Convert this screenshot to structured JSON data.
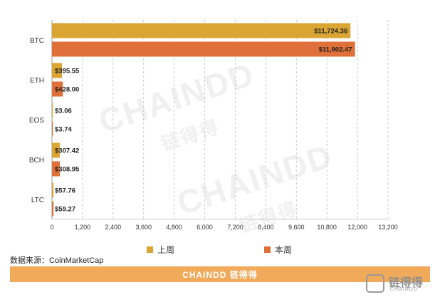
{
  "chart_data": {
    "type": "bar",
    "orientation": "horizontal",
    "categories": [
      "BTC",
      "ETH",
      "EOS",
      "BCH",
      "LTC"
    ],
    "series": [
      {
        "name": "上周",
        "color": "#dba534",
        "values": [
          11724.36,
          395.55,
          3.06,
          307.42,
          57.76
        ],
        "labels": [
          "$11,724.36",
          "$395.55",
          "$3.06",
          "$307.42",
          "$57.76"
        ]
      },
      {
        "name": "本周",
        "color": "#e0703a",
        "values": [
          11902.47,
          428.0,
          3.74,
          308.95,
          59.27
        ],
        "labels": [
          "$11,902.47",
          "$428.00",
          "$3.74",
          "$308.95",
          "$59.27"
        ]
      }
    ],
    "xlim": [
      0,
      13200
    ],
    "x_ticks": [
      0,
      1200,
      2400,
      3600,
      4800,
      6000,
      7200,
      8400,
      9600,
      10800,
      12000,
      13200
    ],
    "x_tick_labels": [
      "0",
      "1,200",
      "2,400",
      "3,600",
      "4,800",
      "6,000",
      "7,200",
      "8,400",
      "9,600",
      "10,800",
      "12,000",
      "13,200"
    ],
    "grid": "vertical dashed",
    "legend_placement": "bottom"
  },
  "source_text": "数据来源：CoinMarketCap",
  "footer": {
    "brand": "CHAINDD 链得得"
  },
  "corner_logo": {
    "name": "链得得",
    "sub": "CHAINDD"
  },
  "watermarks": [
    "CHAINDD",
    "链得得",
    "CHAINDD",
    "链得得"
  ]
}
